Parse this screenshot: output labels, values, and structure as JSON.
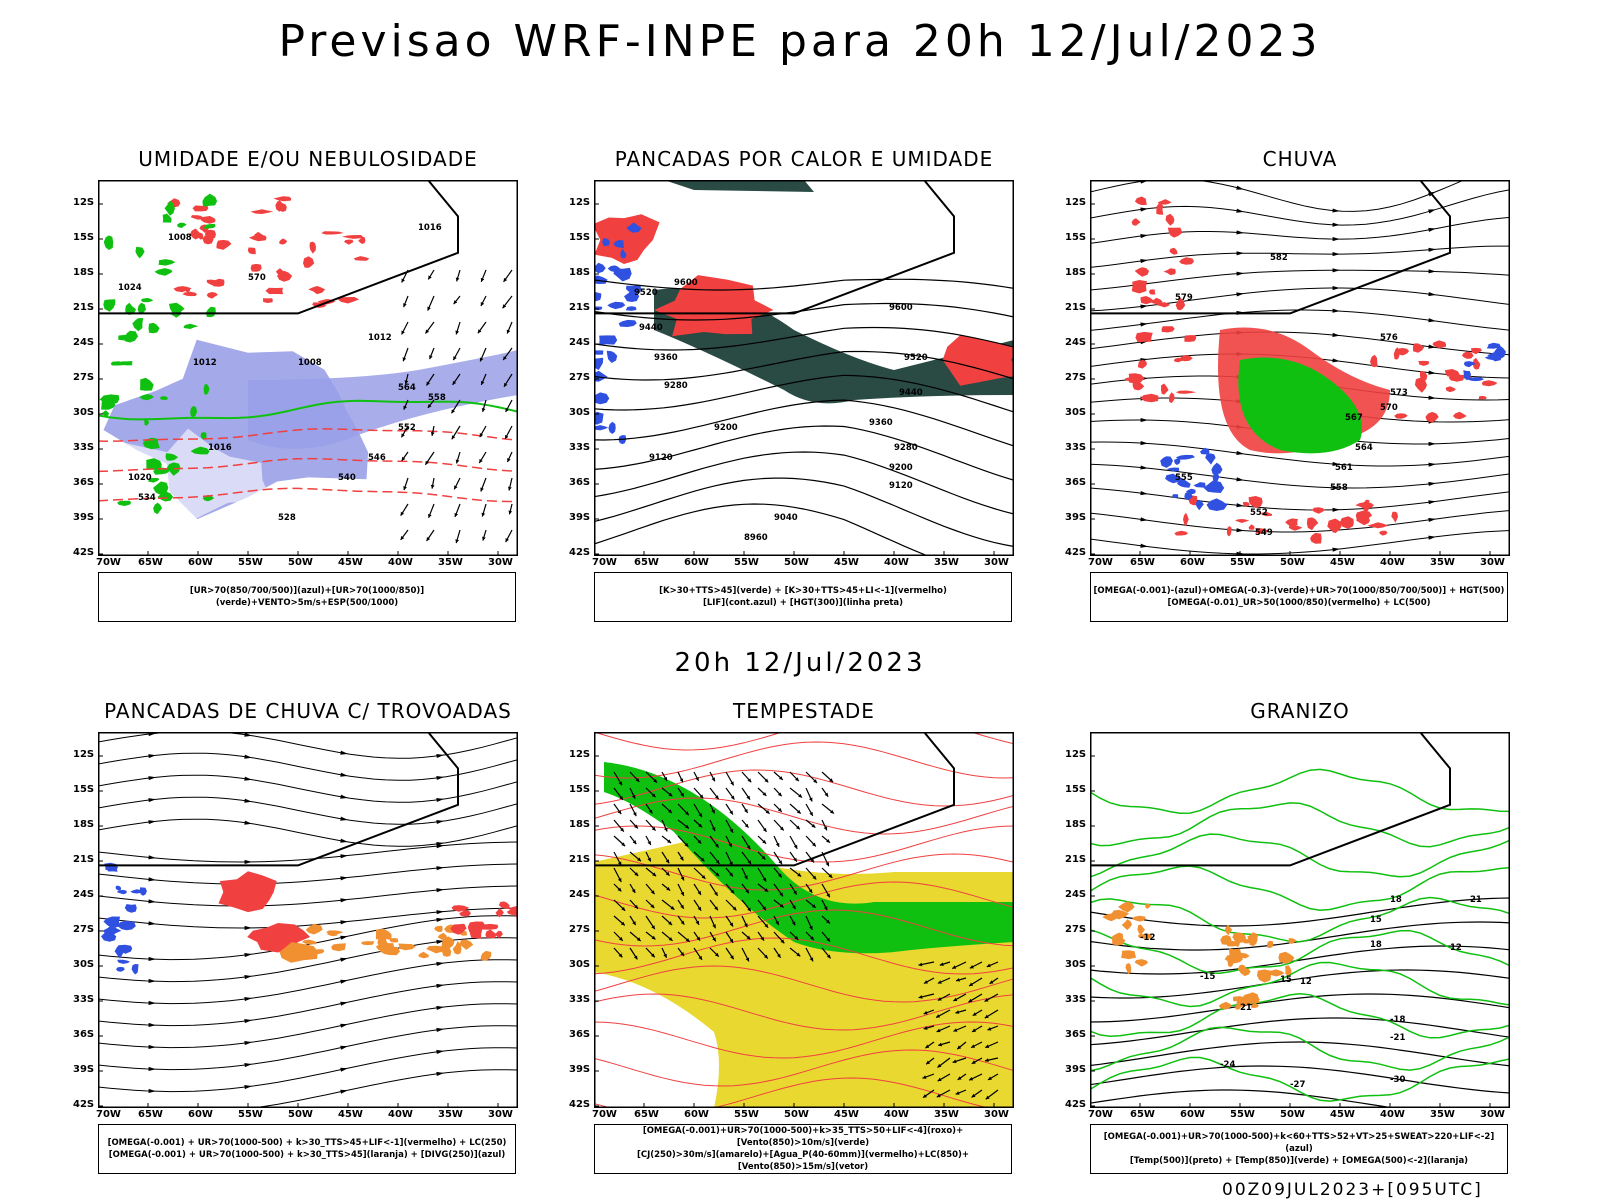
{
  "header": {
    "title": "Previsao WRF-INPE  para 20h 12/Jul/2023",
    "mid_title": "20h 12/Jul/2023",
    "footer_stamp": "00Z09JUL2023+[095UTC]"
  },
  "axes": {
    "lat_ticks": [
      "12S",
      "15S",
      "18S",
      "21S",
      "24S",
      "27S",
      "30S",
      "33S",
      "36S",
      "39S",
      "42S"
    ],
    "lon_ticks": [
      "70W",
      "65W",
      "60W",
      "55W",
      "50W",
      "45W",
      "40W",
      "35W",
      "30W"
    ]
  },
  "colors": {
    "blue": "#3050e0",
    "green": "#10c010",
    "red": "#f04040",
    "darkgreen": "#2a4a44",
    "orange": "#f09030",
    "yellow": "#e8d830",
    "lavender": "#9aa0e8"
  },
  "panels": [
    {
      "id": "umidade",
      "title": "UMIDADE E/OU NEBULOSIDADE",
      "legend_lines": [
        "[UR>70(850/700/500)](azul)+[UR>70(1000/850)](verde)+VENTO>5m/s+ESP(500/1000)"
      ],
      "contour_labels": [
        "1008",
        "1012",
        "1016",
        "1020",
        "1024",
        "1016",
        "1012",
        "1008",
        "570",
        "564",
        "558",
        "552",
        "546",
        "540",
        "534",
        "528"
      ]
    },
    {
      "id": "pancadas-calor",
      "title": "PANCADAS POR CALOR E UMIDADE",
      "legend_lines": [
        "[K>30+TTS>45](verde) + [K>30+TTS>45+LI<-1](vermelho)",
        "[LIF](cont.azul) + [HGT(300)](linha preta)"
      ],
      "contour_labels": [
        "9600",
        "9520",
        "9440",
        "9360",
        "9280",
        "9200",
        "9120",
        "9040",
        "8960",
        "9600",
        "9520",
        "9440",
        "9360",
        "9280",
        "9200",
        "9120"
      ]
    },
    {
      "id": "chuva",
      "title": "CHUVA",
      "legend_lines": [
        "[OMEGA(-0.001)-(azul)+OMEGA(-0.3)-(verde)+UR>70(1000/850/700/500)] + HGT(500)",
        "[OMEGA(-0.01)_UR>50(1000/850)(vermelho) + LC(500)"
      ],
      "contour_labels": [
        "582",
        "579",
        "576",
        "573",
        "570",
        "567",
        "564",
        "561",
        "558",
        "555",
        "552",
        "549"
      ]
    },
    {
      "id": "pancadas-trovoadas",
      "title": "PANCADAS DE CHUVA C/ TROVOADAS",
      "legend_lines": [
        "[OMEGA(-0.001) + UR>70(1000-500) + k>30_TTS>45+LIF<-1](vermelho) + LC(250)",
        "[OMEGA(-0.001) + UR>70(1000-500) + k>30_TTS>45](laranja) + [DIVG(250)](azul)"
      ],
      "contour_labels": []
    },
    {
      "id": "tempestade",
      "title": "TEMPESTADE",
      "legend_lines": [
        "[OMEGA(-0.001)+UR>70(1000-500)+k>35_TTS>50+LIF<-4](roxo)+[Vento(850)>10m/s](verde)",
        "[CJ(250)>30m/s](amarelo)+[Agua_P(40-60mm)](vermelho)+LC(850)+[Vento(850)>15m/s](vetor)"
      ],
      "contour_labels": []
    },
    {
      "id": "granizo",
      "title": "GRANIZO",
      "legend_lines": [
        "[OMEGA(-0.001)+UR>70(1000-500)+k<60+TTS>52+VT>25+SWEAT>220+LIF<-2](azul)",
        "[Temp(500)](preto) + [Temp(850)](verde) + [OMEGA(500)<-2](laranja)"
      ],
      "contour_labels": [
        "-12",
        "-15",
        "-18",
        "-21",
        "-24",
        "-27",
        "-30",
        "12",
        "15",
        "18",
        "21",
        "12",
        "15",
        "18",
        "21"
      ]
    }
  ]
}
